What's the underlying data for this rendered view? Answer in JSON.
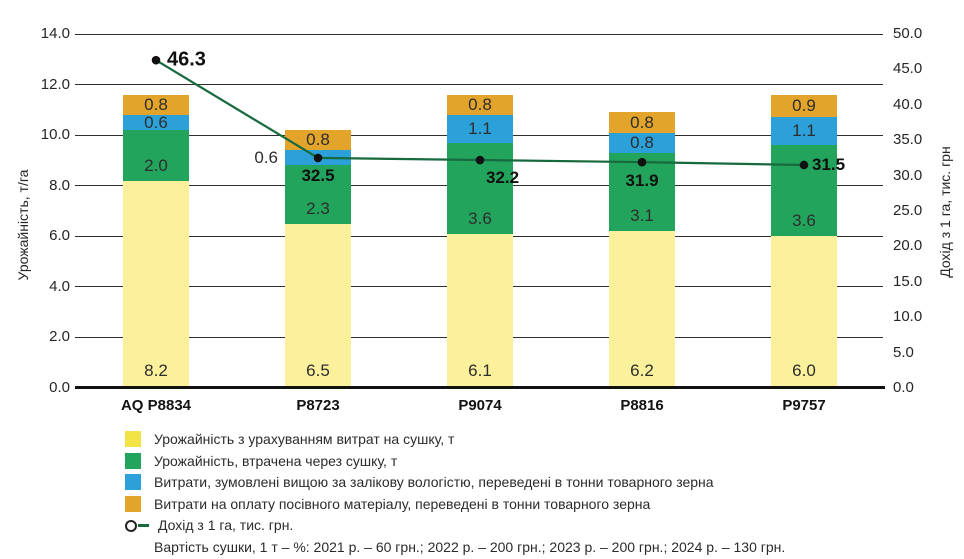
{
  "chart_data": {
    "type": "bar",
    "subtype": "stacked-bars-with-line",
    "categories": [
      "AQ P8834",
      "P8723",
      "P9074",
      "P8816",
      "P9757"
    ],
    "series": [
      {
        "name": "Урожайність з урахуванням витрат на сушку, т",
        "color": "#FBF09B",
        "legend_color": "#F1E444",
        "values": [
          8.2,
          6.5,
          6.1,
          6.2,
          6.0
        ]
      },
      {
        "name": "Урожайність, втрачена через сушку, т",
        "color": "#23A45C",
        "legend_color": "#23A45C",
        "values": [
          2.0,
          2.3,
          3.6,
          3.1,
          3.6
        ]
      },
      {
        "name": "Витрати, зумовлені вищою за залікову вологістю, переведені в тонни товарного зерна",
        "color": "#2CA0D9",
        "legend_color": "#2CA0D9",
        "values": [
          0.6,
          0.6,
          1.1,
          0.8,
          1.1
        ]
      },
      {
        "name": "Витрати на оплату посівного матеріалу, переведені в тонни товарного зерна",
        "color": "#E2A42B",
        "legend_color": "#E2A42B",
        "values": [
          0.8,
          0.8,
          0.8,
          0.8,
          0.9
        ]
      }
    ],
    "line_series": {
      "name": "Дохід з 1 га, тис. грн.",
      "color": "#17693E",
      "point_color": "#111111",
      "values": [
        46.3,
        32.5,
        32.2,
        31.9,
        31.5
      ]
    },
    "left_axis": {
      "label": "Урожайність, т/га",
      "min": 0,
      "max": 14,
      "step": 2,
      "ticks": [
        "0.0",
        "2.0",
        "4.0",
        "6.0",
        "8.0",
        "10.0",
        "12.0",
        "14.0"
      ]
    },
    "right_axis": {
      "label": "Дохід з 1 га, тис. грн",
      "min": 0,
      "max": 50,
      "step": 5,
      "ticks": [
        "0.0",
        "5.0",
        "10.0",
        "15.0",
        "20.0",
        "25.0",
        "30.0",
        "35.0",
        "40.0",
        "45.0",
        "50.0"
      ]
    },
    "grid": true,
    "legend_position": "bottom-left",
    "note": "Вартість сушки, 1 т – %: 2021 р. – 60 грн.; 2022 р. – 200 грн.; 2023 р. – 200 грн.; 2024 р. – 130 грн."
  }
}
